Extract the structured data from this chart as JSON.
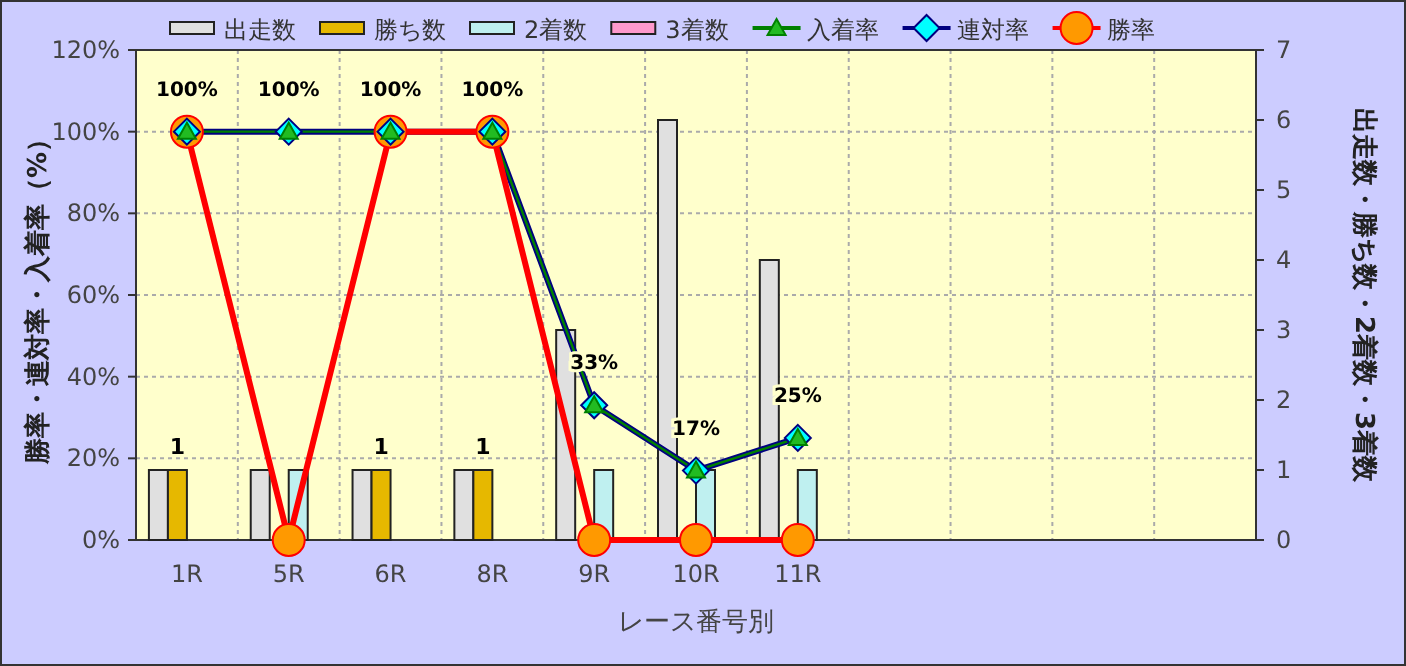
{
  "chart_data": {
    "type": "bar",
    "xlabel": "レース番号別",
    "ylabel": "勝率・連対率・入着率（%）",
    "y2label": "出走数・勝ち数・2着数・3着数",
    "categories": [
      "1R",
      "5R",
      "6R",
      "8R",
      "9R",
      "10R",
      "11R",
      null,
      null,
      null,
      null
    ],
    "ylim": [
      0,
      120
    ],
    "yticks": [
      {
        "value": 0,
        "label": "0%"
      },
      {
        "value": 20,
        "label": "20%"
      },
      {
        "value": 40,
        "label": "40%"
      },
      {
        "value": 60,
        "label": "60%"
      },
      {
        "value": 80,
        "label": "80%"
      },
      {
        "value": 100,
        "label": "100%"
      },
      {
        "value": 120,
        "label": "120%"
      }
    ],
    "y2lim": [
      0,
      7
    ],
    "y2ticks": [
      0,
      1,
      2,
      3,
      4,
      5,
      6,
      7
    ],
    "grid": true,
    "legend": "top",
    "series": [
      {
        "name": "出走数",
        "axis": "y2",
        "color": "#e0e0e0",
        "values": [
          1,
          1,
          1,
          1,
          3,
          6,
          4,
          null,
          null,
          null,
          null
        ]
      },
      {
        "name": "勝ち数",
        "axis": "y2",
        "color": "#e6b800",
        "values": [
          1,
          0,
          1,
          1,
          0,
          0,
          0,
          null,
          null,
          null,
          null
        ],
        "value_labels": [
          "1",
          null,
          "1",
          "1",
          null,
          null,
          null,
          null,
          null,
          null,
          null
        ]
      },
      {
        "name": "2着数",
        "axis": "y2",
        "color": "#bff0f0",
        "values": [
          0,
          1,
          0,
          0,
          1,
          1,
          1,
          null,
          null,
          null,
          null
        ]
      },
      {
        "name": "3着数",
        "axis": "y2",
        "color": "#ff99cc",
        "values": [
          0,
          0,
          0,
          0,
          0,
          0,
          0,
          null,
          null,
          null,
          null
        ]
      },
      {
        "name": "入着率",
        "type": "line",
        "color": "#008000",
        "marker": "triangle",
        "values": [
          100,
          100,
          100,
          100,
          33,
          17,
          25,
          null,
          null,
          null,
          null
        ],
        "value_labels": [
          "100%",
          "100%",
          "100%",
          "100%",
          "33%",
          "17%",
          "25%",
          null,
          null,
          null,
          null
        ]
      },
      {
        "name": "連対率",
        "type": "line",
        "color": "#000080",
        "marker": "diamond",
        "values": [
          100,
          100,
          100,
          100,
          33,
          17,
          25,
          null,
          null,
          null,
          null
        ]
      },
      {
        "name": "勝率",
        "type": "line",
        "color": "#ff0000",
        "marker": "circle",
        "values": [
          100,
          0,
          100,
          100,
          0,
          0,
          0,
          null,
          null,
          null,
          null
        ]
      }
    ]
  }
}
